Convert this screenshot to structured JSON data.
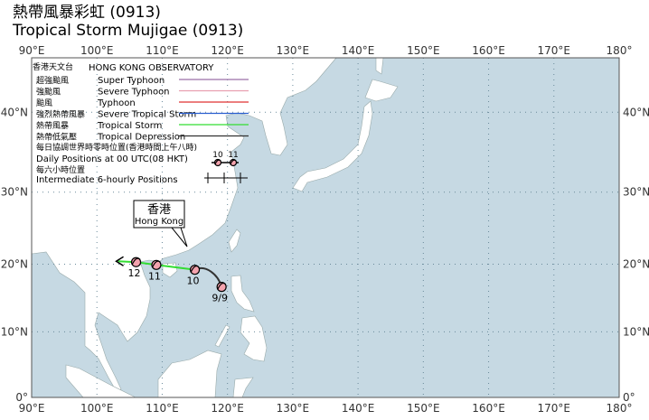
{
  "header": {
    "title_zh": "熱帶風暴彩虹 (0913)",
    "title_en": "Tropical Storm Mujigae (0913)"
  },
  "map": {
    "lon_labels": [
      "90°E",
      "100°E",
      "110°E",
      "120°E",
      "130°E",
      "140°E",
      "150°E",
      "160°E",
      "170°E",
      "180°"
    ],
    "lat_labels": [
      "40°N",
      "30°N",
      "20°N",
      "10°N",
      "0°"
    ]
  },
  "legend": {
    "org_zh": "香港天文台",
    "org_en": "HONG KONG OBSERVATORY",
    "entries": [
      {
        "zh": "超強颱風",
        "en": "Super Typhoon",
        "color": "#9b6fa6"
      },
      {
        "zh": "強颱風",
        "en": "Severe Typhoon",
        "color": "#e8a0b0"
      },
      {
        "zh": "颱風",
        "en": "Typhoon",
        "color": "#e03030"
      },
      {
        "zh": "強烈熱帶風暴",
        "en": "Severe Tropical Storm",
        "color": "#2b5fd0"
      },
      {
        "zh": "熱帶風暴",
        "en": "Tropical Storm",
        "color": "#33dd33"
      },
      {
        "zh": "熱帶低氣壓",
        "en": "Tropical Depression",
        "color": "#333333"
      }
    ],
    "daily_zh": "每日協調世界時零時位置(香港時間上午八時)",
    "daily_en": "Daily Positions at 00 UTC(08 HKT)",
    "daily_sample": [
      "10",
      "11"
    ],
    "six_hourly_zh": "每六小時位置",
    "six_hourly_en": "Intermediate 6-hourly Positions"
  },
  "hong_kong": {
    "zh": "香港",
    "en": "Hong Kong"
  },
  "track": [
    {
      "label": "9/9",
      "lon": 119.1,
      "lat": 16.7
    },
    {
      "label": "10",
      "lon": 115.0,
      "lat": 19.2
    },
    {
      "label": "11",
      "lon": 109.1,
      "lat": 19.9
    },
    {
      "label": "12",
      "lon": 106.0,
      "lat": 20.3
    }
  ]
}
